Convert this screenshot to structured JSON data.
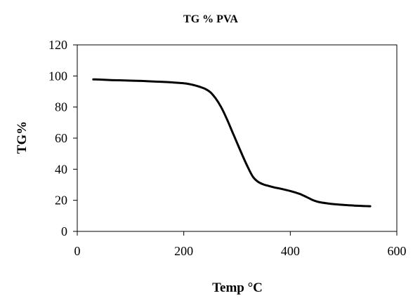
{
  "chart_data": {
    "type": "line",
    "title": "TG % PVA",
    "xlabel": "Temp °C",
    "ylabel": "TG%",
    "xlim": [
      0,
      600
    ],
    "ylim": [
      0,
      120
    ],
    "xticks": [
      "0",
      "200",
      "400",
      "600"
    ],
    "yticks": [
      "0",
      "20",
      "40",
      "60",
      "80",
      "100",
      "120"
    ],
    "grid": false,
    "legend": "none",
    "series": [
      {
        "color": "#000000",
        "x": [
          30,
          40,
          60,
          80,
          100,
          120,
          140,
          160,
          180,
          200,
          210,
          220,
          230,
          240,
          250,
          260,
          270,
          280,
          290,
          300,
          310,
          320,
          330,
          340,
          350,
          360,
          370,
          380,
          390,
          400,
          410,
          420,
          430,
          440,
          450,
          460,
          470,
          480,
          500,
          520,
          540,
          550
        ],
        "y": [
          97.8,
          97.7,
          97.4,
          97.2,
          97.0,
          96.8,
          96.5,
          96.2,
          95.8,
          95.3,
          94.8,
          94.0,
          93.0,
          91.7,
          89.5,
          85.5,
          80.0,
          73.0,
          65.0,
          57.0,
          49.0,
          41.5,
          35.0,
          31.8,
          30.2,
          29.2,
          28.3,
          27.6,
          26.8,
          26.0,
          25.0,
          23.8,
          22.2,
          20.5,
          19.2,
          18.5,
          18.0,
          17.6,
          17.0,
          16.6,
          16.3,
          16.2
        ]
      }
    ]
  }
}
